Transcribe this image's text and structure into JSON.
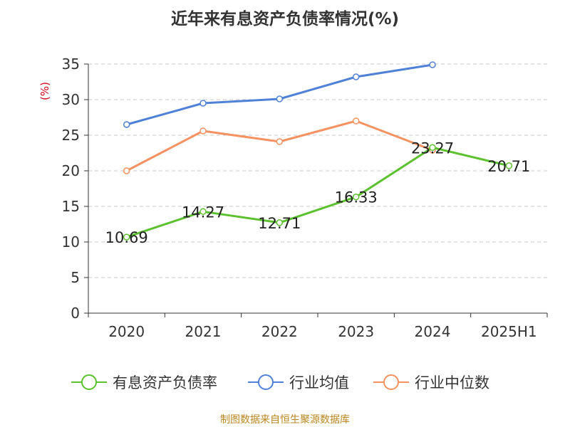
{
  "chart_data": {
    "type": "line",
    "title": "近年来有息资产负债率情况(%)",
    "ylabel": "(%)",
    "xlabel": "",
    "categories": [
      "2020",
      "2021",
      "2022",
      "2023",
      "2024",
      "2025H1"
    ],
    "ylim": [
      0,
      35
    ],
    "yticks": [
      0,
      5,
      10,
      15,
      20,
      25,
      30,
      35
    ],
    "grid": true,
    "legend_position": "bottom",
    "series": [
      {
        "name": "有息资产负债率",
        "color": "#5cc12f",
        "values": [
          10.69,
          14.27,
          12.71,
          16.33,
          23.27,
          20.71
        ],
        "labels": [
          "10.69",
          "14.27",
          "12.71",
          "16.33",
          "23.27",
          "20.71"
        ]
      },
      {
        "name": "行业均值",
        "color": "#4f81d6",
        "values": [
          26.5,
          29.5,
          30.1,
          33.2,
          34.9,
          null
        ]
      },
      {
        "name": "行业中位数",
        "color": "#f59262",
        "values": [
          20.0,
          25.6,
          24.1,
          27.0,
          22.9,
          null
        ]
      }
    ]
  },
  "footer": {
    "source": "制图数据来自恒生聚源数据库"
  }
}
